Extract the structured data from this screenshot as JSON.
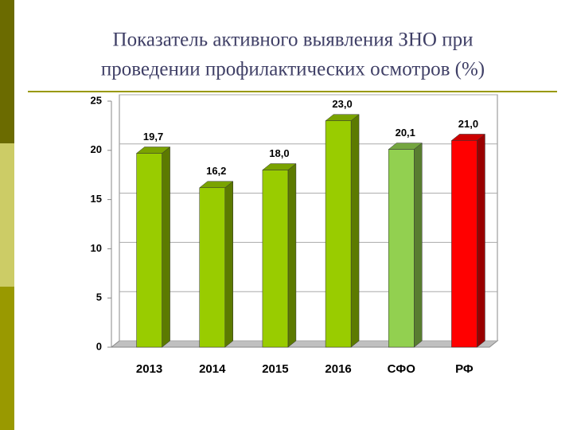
{
  "chart_data": {
    "type": "bar3d",
    "title": [
      "Показатель активного выявления ЗНО при",
      "проведении профилактических осмотров (%)"
    ],
    "categories": [
      "2013",
      "2014",
      "2015",
      "2016",
      "СФО",
      "РФ"
    ],
    "values": [
      19.7,
      16.2,
      18.0,
      23.0,
      20.1,
      21.0
    ],
    "value_labels": [
      "19,7",
      "16,2",
      "18,0",
      "23,0",
      "20,1",
      "21,0"
    ],
    "colors": [
      "#99cc00",
      "#99cc00",
      "#99cc00",
      "#99cc00",
      "#92d050",
      "#ff0000"
    ],
    "ylim": [
      0,
      25
    ],
    "yticks": [
      0,
      5,
      10,
      15,
      20,
      25
    ],
    "grid": true
  }
}
